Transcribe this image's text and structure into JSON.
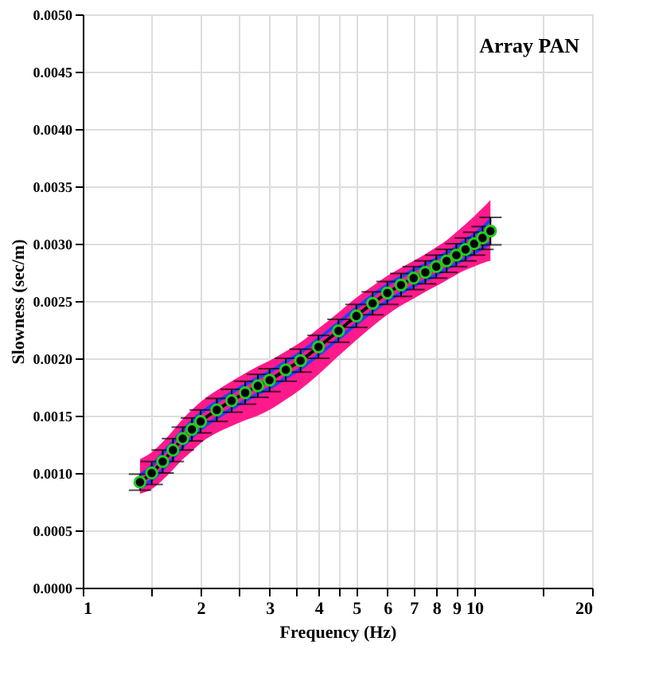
{
  "chart_data": {
    "type": "line",
    "xlabel": "Frequency (Hz)",
    "ylabel": "Slowness (sec/m)",
    "annotations": [
      "Array PAN"
    ],
    "log": "x",
    "grid": true,
    "marker": "circle",
    "line_style": "solid",
    "x": [
      1.4,
      1.5,
      1.6,
      1.7,
      1.8,
      1.9,
      2.0,
      2.2,
      2.4,
      2.6,
      2.8,
      3.0,
      3.3,
      3.6,
      4.0,
      4.5,
      5.0,
      5.5,
      6.0,
      6.5,
      7.0,
      7.5,
      8.0,
      8.5,
      9.0,
      9.5,
      10.0,
      10.5,
      11.0
    ],
    "xlim": [
      1,
      20
    ],
    "ylim": [
      0,
      0.005
    ],
    "xticks": [
      1,
      {
        "value": 1.5,
        "label": null
      },
      2,
      {
        "value": 2.5,
        "label": null
      },
      3,
      {
        "value": 3.5,
        "label": null
      },
      4,
      {
        "value": 4.5,
        "label": null
      },
      5,
      6,
      7,
      8,
      9,
      10,
      {
        "value": 15,
        "label": null
      },
      20
    ],
    "yticks": [
      {
        "value": 0,
        "label": "0.0000"
      },
      {
        "value": 0.0005,
        "label": "0.0005"
      },
      {
        "value": 0.001,
        "label": "0.0010"
      },
      {
        "value": 0.0015,
        "label": "0.0015"
      },
      {
        "value": 0.002,
        "label": "0.0020"
      },
      {
        "value": 0.0025,
        "label": "0.0025"
      },
      {
        "value": 0.003,
        "label": "0.0030"
      },
      {
        "value": 0.0035,
        "label": "0.0035"
      },
      {
        "value": 0.004,
        "label": "0.0040"
      },
      {
        "value": 0.0045,
        "label": "0.0045"
      },
      {
        "value": 0.005,
        "label": "0.0050"
      }
    ],
    "series": [
      {
        "color": "#000000",
        "values": [
          0.00092,
          0.001,
          0.0011,
          0.0012,
          0.0013,
          0.00138,
          0.00145,
          0.00155,
          0.00163,
          0.0017,
          0.00176,
          0.00181,
          0.0019,
          0.00198,
          0.0021,
          0.00224,
          0.00237,
          0.00248,
          0.00257,
          0.00264,
          0.0027,
          0.00275,
          0.0028,
          0.00285,
          0.0029,
          0.00295,
          0.003,
          0.00305,
          0.00311
        ],
        "lower": [
          0.00082,
          0.00086,
          0.00094,
          0.00103,
          0.00112,
          0.00119,
          0.00126,
          0.00135,
          0.00141,
          0.00146,
          0.0015,
          0.00155,
          0.00164,
          0.00173,
          0.00186,
          0.00202,
          0.00216,
          0.00228,
          0.00238,
          0.00246,
          0.00252,
          0.00258,
          0.00263,
          0.00268,
          0.00273,
          0.00277,
          0.0028,
          0.00283,
          0.00285
        ],
        "upper": [
          0.00112,
          0.00118,
          0.00127,
          0.00137,
          0.00147,
          0.00155,
          0.00162,
          0.00172,
          0.0018,
          0.00187,
          0.00193,
          0.00198,
          0.00206,
          0.00214,
          0.00226,
          0.0024,
          0.00253,
          0.00263,
          0.00272,
          0.00279,
          0.00285,
          0.00291,
          0.00297,
          0.00303,
          0.0031,
          0.00317,
          0.00324,
          0.00331,
          0.00338
        ],
        "errors": [
          7e-05,
          0.0001,
          0.0001,
          0.0001,
          0.0001,
          0.0001,
          0.0001,
          0.0001,
          0.0001,
          0.0001,
          0.0001,
          0.0001,
          0.0001,
          0.0001,
          0.0001,
          0.0001,
          0.0001,
          0.0001,
          0.0001,
          0.0001,
          0.0001,
          0.0001,
          0.0001,
          0.0001,
          0.0001,
          0.0001,
          0.0001,
          0.0001,
          0.00012
        ]
      },
      {
        "color": "#2040ff",
        "marker": "none",
        "values": [
          0.00087,
          0.00094,
          0.00103,
          0.00113,
          0.00123,
          0.00131,
          0.00138,
          0.00148,
          0.00156,
          0.00163,
          0.00169,
          0.00174,
          0.00183,
          0.00191,
          0.00203,
          0.00217,
          0.0023,
          0.00241,
          0.0025,
          0.00257,
          0.00263,
          0.00268,
          0.00273,
          0.00278,
          0.00283,
          0.00287,
          0.00292,
          0.00296,
          0.00301
        ]
      },
      {
        "color": "#2040ff",
        "marker": "none",
        "values": [
          0.00098,
          0.00106,
          0.00117,
          0.00127,
          0.00137,
          0.00145,
          0.00152,
          0.00162,
          0.0017,
          0.00177,
          0.00183,
          0.00188,
          0.00197,
          0.00205,
          0.00217,
          0.00231,
          0.00244,
          0.00255,
          0.00264,
          0.00271,
          0.00277,
          0.00282,
          0.00287,
          0.00292,
          0.00297,
          0.00303,
          0.00308,
          0.00314,
          0.00321
        ]
      }
    ]
  }
}
